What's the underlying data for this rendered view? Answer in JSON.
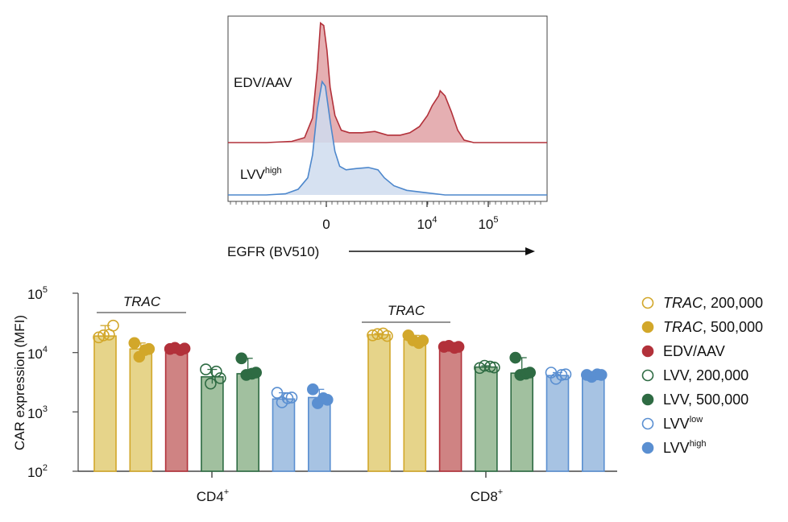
{
  "chart_data": [
    {
      "type": "histogram",
      "xlabel": "EGFR (BV510)",
      "x_scale": "biexponential",
      "x_tick_labels": [
        {
          "value": 0,
          "label": "0"
        },
        {
          "value": 10000,
          "base": "10",
          "exp": "4"
        },
        {
          "value": 100000,
          "base": "10",
          "exp": "5"
        }
      ],
      "series": [
        {
          "name": "EDV/AAV",
          "label_base": "EDV/AAV",
          "label_sup": "",
          "stroke": "#b2313a",
          "fill": "#e2a6aa",
          "description": "Bimodal: large peak near 0 (~0.97 of panel max height), small plateau, second peak near 1.5×10^4 (~0.42)",
          "profile": [
            [
              0.0,
              0.0
            ],
            [
              0.12,
              0.0
            ],
            [
              0.2,
              0.01
            ],
            [
              0.24,
              0.04
            ],
            [
              0.265,
              0.2
            ],
            [
              0.28,
              0.6
            ],
            [
              0.29,
              0.97
            ],
            [
              0.3,
              0.95
            ],
            [
              0.31,
              0.75
            ],
            [
              0.32,
              0.45
            ],
            [
              0.335,
              0.22
            ],
            [
              0.355,
              0.1
            ],
            [
              0.38,
              0.08
            ],
            [
              0.42,
              0.08
            ],
            [
              0.46,
              0.09
            ],
            [
              0.5,
              0.06
            ],
            [
              0.54,
              0.06
            ],
            [
              0.57,
              0.08
            ],
            [
              0.6,
              0.13
            ],
            [
              0.625,
              0.22
            ],
            [
              0.64,
              0.3
            ],
            [
              0.66,
              0.38
            ],
            [
              0.665,
              0.42
            ],
            [
              0.68,
              0.38
            ],
            [
              0.7,
              0.25
            ],
            [
              0.72,
              0.1
            ],
            [
              0.74,
              0.02
            ],
            [
              0.77,
              0.0
            ],
            [
              1.0,
              0.0
            ]
          ]
        },
        {
          "name": "LVV high",
          "label_base": "LVV",
          "label_sup": "high",
          "stroke": "#4d87cc",
          "fill": "#cfdcef",
          "description": "Large peak near 0 (~0.99), shoulder plateau from ~0 to ~10^3 (~0.23)",
          "profile": [
            [
              0.0,
              0.0
            ],
            [
              0.12,
              0.0
            ],
            [
              0.18,
              0.01
            ],
            [
              0.22,
              0.05
            ],
            [
              0.25,
              0.15
            ],
            [
              0.265,
              0.35
            ],
            [
              0.28,
              0.75
            ],
            [
              0.295,
              0.99
            ],
            [
              0.305,
              0.95
            ],
            [
              0.32,
              0.65
            ],
            [
              0.335,
              0.38
            ],
            [
              0.35,
              0.25
            ],
            [
              0.37,
              0.22
            ],
            [
              0.4,
              0.23
            ],
            [
              0.44,
              0.24
            ],
            [
              0.47,
              0.22
            ],
            [
              0.49,
              0.15
            ],
            [
              0.52,
              0.08
            ],
            [
              0.56,
              0.04
            ],
            [
              0.62,
              0.02
            ],
            [
              0.68,
              0.0
            ],
            [
              1.0,
              0.0
            ]
          ]
        }
      ]
    },
    {
      "type": "bar",
      "ylabel": "CAR expression (MFI)",
      "y_scale": "log",
      "ylim": [
        100,
        100000
      ],
      "y_ticks": [
        {
          "value": 100,
          "base": "10",
          "exp": "2"
        },
        {
          "value": 1000,
          "base": "10",
          "exp": "3"
        },
        {
          "value": 10000,
          "base": "10",
          "exp": "4"
        },
        {
          "value": 100000,
          "base": "10",
          "exp": "5"
        }
      ],
      "groups": [
        {
          "label_base": "CD4",
          "label_sup": "+"
        },
        {
          "label_base": "CD8",
          "label_sup": "+"
        }
      ],
      "bracket_label": "TRAC",
      "series": [
        {
          "name": "TRAC, 200,000",
          "italic_part": "TRAC",
          "rest": ", 200,000",
          "sup": "",
          "marker": "open",
          "stroke": "#d2a72a",
          "fill": "#e6d48a",
          "values": [
            19000,
            20000
          ],
          "points": [
            [
              18000,
              19500,
              20000,
              28500
            ],
            [
              19500,
              20500,
              21000,
              19000
            ]
          ]
        },
        {
          "name": "TRAC, 500,000",
          "italic_part": "TRAC",
          "rest": ", 500,000",
          "sup": "",
          "marker": "filled",
          "stroke": "#d2a72a",
          "fill": "#e6d48a",
          "values": [
            11500,
            16500
          ],
          "points": [
            [
              14500,
              8500,
              11000,
              11500
            ],
            [
              19500,
              16000,
              14500,
              16000
            ]
          ]
        },
        {
          "name": "EDV/AAV",
          "italic_part": "",
          "rest": "EDV/AAV",
          "sup": "",
          "marker": "filled",
          "stroke": "#b2313a",
          "fill": "#cf8383",
          "values": [
            11500,
            12500
          ],
          "points": [
            [
              11500,
              12000,
              11000,
              11700
            ],
            [
              12500,
              13000,
              12000,
              12500
            ]
          ]
        },
        {
          "name": "LVV, 200,000",
          "italic_part": "",
          "rest": "LVV, 200,000",
          "sup": "",
          "marker": "open",
          "stroke": "#2e6b43",
          "fill": "#a1c09f",
          "values": [
            3900,
            5700
          ],
          "points": [
            [
              5200,
              3000,
              4800,
              3700
            ],
            [
              5500,
              6000,
              5800,
              5600
            ]
          ]
        },
        {
          "name": "LVV, 500,000",
          "italic_part": "",
          "rest": "LVV, 500,000",
          "sup": "",
          "marker": "filled",
          "stroke": "#2e6b43",
          "fill": "#a1c09f",
          "values": [
            4400,
            4500
          ],
          "points": [
            [
              8000,
              4200,
              4400,
              4600
            ],
            [
              8200,
              4200,
              4400,
              4600
            ]
          ]
        },
        {
          "name": "LVV low",
          "italic_part": "",
          "rest": "LVV",
          "sup": "low",
          "marker": "open",
          "stroke": "#5a8fd1",
          "fill": "#a7c3e3",
          "values": [
            1650,
            4100
          ],
          "points": [
            [
              2100,
              1450,
              1700,
              1750
            ],
            [
              4600,
              3600,
              4200,
              4300
            ]
          ]
        },
        {
          "name": "LVV high",
          "italic_part": "",
          "rest": "LVV",
          "sup": "high",
          "marker": "filled",
          "stroke": "#5a8fd1",
          "fill": "#a7c3e3",
          "values": [
            1750,
            4100
          ],
          "points": [
            [
              2400,
              1400,
              1700,
              1600
            ],
            [
              4200,
              3900,
              4300,
              4200
            ]
          ]
        }
      ],
      "legend": {
        "placement": "right"
      }
    }
  ]
}
